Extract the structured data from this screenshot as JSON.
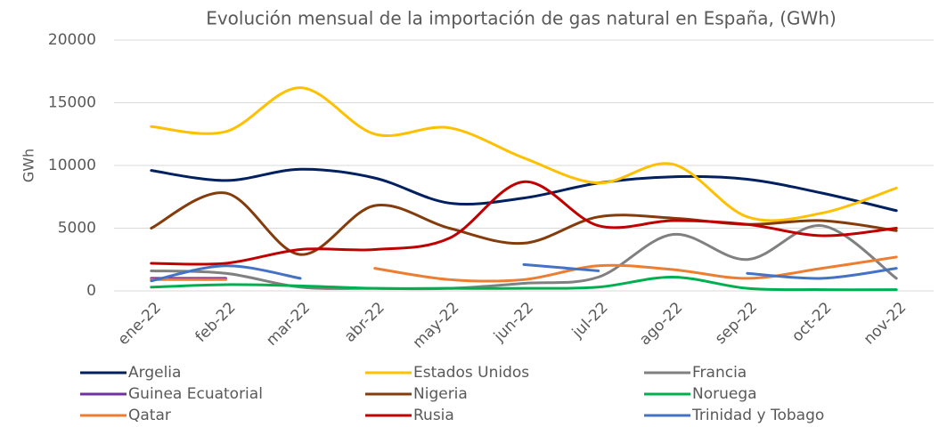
{
  "chart_data": {
    "type": "line",
    "title": "Evolución mensual de la importación de gas natural en España, (GWh)",
    "y_label": "GWh",
    "categories": [
      "ene-22",
      "feb-22",
      "mar-22",
      "abr-22",
      "may-22",
      "jun-22",
      "jul-22",
      "ago-22",
      "sep-22",
      "oct-22",
      "nov-22"
    ],
    "ylim": [
      0,
      20000
    ],
    "yticks": [
      0,
      5000,
      10000,
      15000,
      20000
    ],
    "grid": true,
    "smooth": true,
    "legend": "bottom",
    "series": [
      {
        "name": "Argelia",
        "color": "#002060",
        "values": [
          9600,
          8800,
          9700,
          9000,
          7000,
          7400,
          8600,
          9100,
          8900,
          7800,
          6400
        ]
      },
      {
        "name": "Estados Unidos",
        "color": "#ffc000",
        "values": [
          13100,
          12700,
          16200,
          12500,
          13000,
          10600,
          8600,
          10100,
          5900,
          6200,
          8200
        ]
      },
      {
        "name": "Francia",
        "color": "#808080",
        "values": [
          1600,
          1400,
          300,
          200,
          200,
          600,
          1100,
          4500,
          2500,
          5200,
          1000
        ]
      },
      {
        "name": "Guinea Ecuatorial",
        "color": "#7030a0",
        "values": [
          1000,
          1000,
          null,
          null,
          null,
          null,
          null,
          null,
          null,
          null,
          null
        ]
      },
      {
        "name": "Nigeria",
        "color": "#843c0c",
        "values": [
          5000,
          7800,
          2900,
          6800,
          5000,
          3800,
          5900,
          5800,
          5300,
          5600,
          4800
        ]
      },
      {
        "name": "Noruega",
        "color": "#00b050",
        "values": [
          300,
          500,
          400,
          200,
          200,
          200,
          300,
          1100,
          200,
          100,
          100
        ]
      },
      {
        "name": "Qatar",
        "color": "#ed7d31",
        "values": [
          900,
          900,
          null,
          1800,
          900,
          900,
          2000,
          1700,
          1000,
          1800,
          2700
        ]
      },
      {
        "name": "Rusia",
        "color": "#c00000",
        "values": [
          2200,
          2200,
          3300,
          3300,
          4200,
          8700,
          5200,
          5600,
          5300,
          4400,
          5000
        ]
      },
      {
        "name": "Trinidad y Tobago",
        "color": "#4472c4",
        "values": [
          800,
          2000,
          1000,
          null,
          null,
          2100,
          1600,
          null,
          1400,
          1000,
          1800
        ]
      }
    ]
  }
}
